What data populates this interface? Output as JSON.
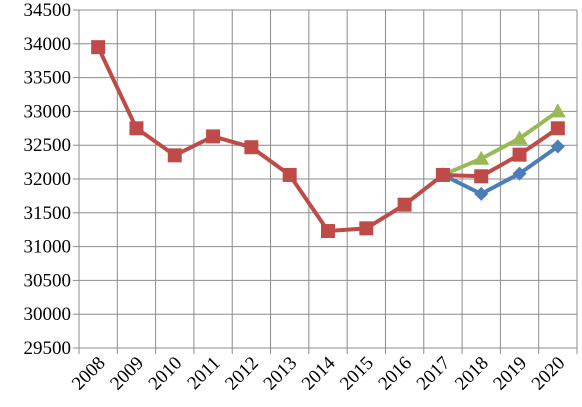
{
  "chart_data": {
    "type": "line",
    "title": "",
    "xlabel": "",
    "ylabel": "",
    "categories": [
      "2008",
      "2009",
      "2010",
      "2011",
      "2012",
      "2013",
      "2014",
      "2015",
      "2016",
      "2017",
      "2018",
      "2019",
      "2020"
    ],
    "y_ticks": [
      "29500",
      "30000",
      "30500",
      "31000",
      "31500",
      "32000",
      "32500",
      "33000",
      "33500",
      "34000",
      "34500"
    ],
    "ylim": [
      29500,
      34500
    ],
    "grid": true,
    "legend": "none",
    "series": [
      {
        "color": "#4a7ebb",
        "marker": "diamond",
        "values": [
          null,
          null,
          null,
          null,
          null,
          null,
          null,
          null,
          null,
          32060,
          31780,
          32080,
          32480
        ]
      },
      {
        "color": "#98b954",
        "marker": "triangle",
        "values": [
          null,
          null,
          null,
          null,
          null,
          null,
          null,
          null,
          null,
          32060,
          32300,
          32600,
          33000
        ]
      },
      {
        "color": "#be4b48",
        "marker": "square",
        "values": [
          33950,
          32750,
          32350,
          32630,
          32470,
          32060,
          31230,
          31270,
          31620,
          32060,
          32040,
          32360,
          32750
        ]
      }
    ]
  }
}
